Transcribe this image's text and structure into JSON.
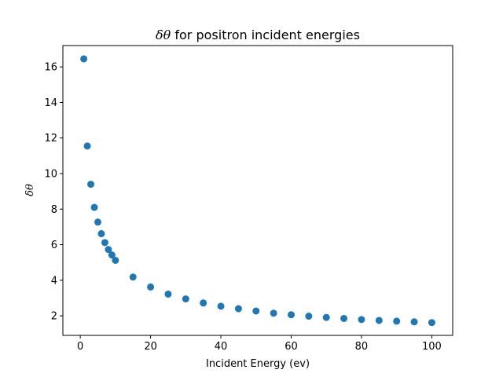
{
  "chart_data": {
    "type": "scatter",
    "title": "δθ for positron incident energies",
    "title_symbol": "δθ",
    "title_rest": " for positron incident energies",
    "xlabel": "Incident Energy (ev)",
    "ylabel": "δθ",
    "xlim": [
      -4.95,
      105.95
    ],
    "ylim": [
      0.9,
      17.2
    ],
    "xticks": [
      0,
      20,
      40,
      60,
      80,
      100
    ],
    "yticks": [
      2,
      4,
      6,
      8,
      10,
      12,
      14,
      16
    ],
    "grid": false,
    "marker_color": "#1f77b4",
    "x": [
      1,
      2,
      3,
      4,
      5,
      6,
      7,
      8,
      9,
      10,
      15,
      20,
      25,
      30,
      35,
      40,
      45,
      50,
      55,
      60,
      65,
      70,
      75,
      80,
      85,
      90,
      95,
      100
    ],
    "y": [
      16.45,
      11.55,
      9.4,
      8.1,
      7.27,
      6.62,
      6.12,
      5.73,
      5.42,
      5.12,
      4.18,
      3.62,
      3.22,
      2.95,
      2.72,
      2.54,
      2.4,
      2.27,
      2.15,
      2.06,
      1.98,
      1.91,
      1.85,
      1.79,
      1.74,
      1.7,
      1.66,
      1.62
    ]
  }
}
